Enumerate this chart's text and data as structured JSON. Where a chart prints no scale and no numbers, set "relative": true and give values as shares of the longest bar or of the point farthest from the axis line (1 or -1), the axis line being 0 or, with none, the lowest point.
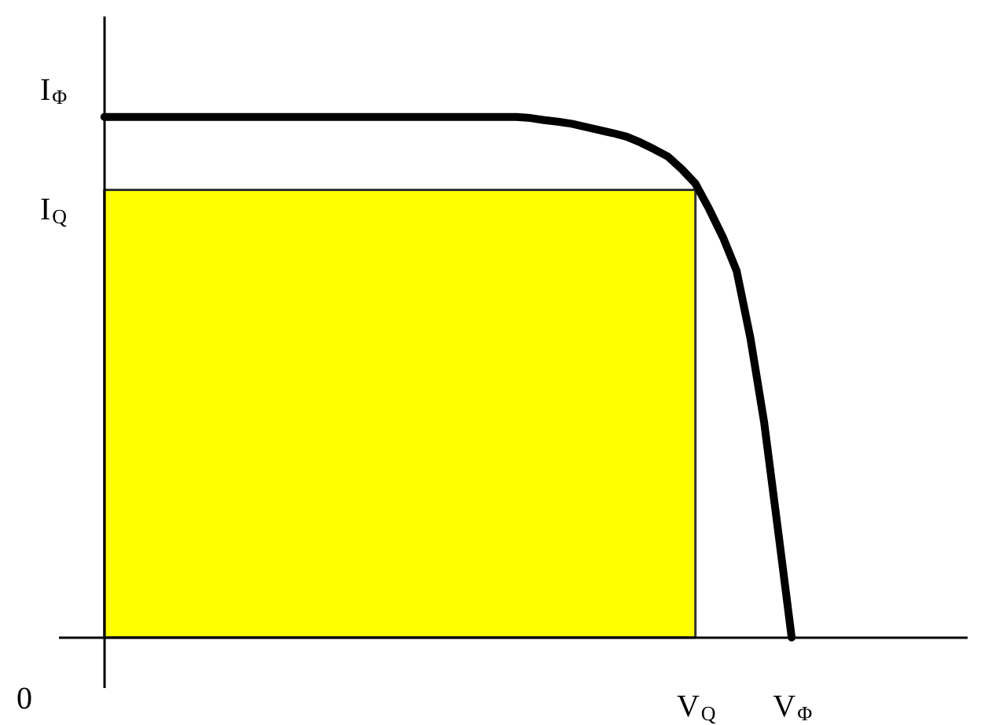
{
  "chart_data": {
    "type": "line",
    "relative": true,
    "grid": false,
    "categories": [
      null,
      null,
      null,
      null,
      null,
      null,
      null,
      null,
      null,
      null,
      null,
      null,
      null,
      null,
      null,
      null,
      null,
      null,
      null,
      null,
      null,
      null,
      null,
      null,
      null,
      null,
      null,
      null,
      null,
      null,
      null,
      null,
      null,
      null,
      null,
      null,
      null,
      null,
      null,
      null,
      null,
      null,
      null,
      "V$_{Q}$",
      null,
      null,
      null,
      null,
      null,
      null,
      "V$_{Φ}$"
    ],
    "series": [
      {
        "type": "area",
        "color": "#ffff00",
        "values": [
          0.86,
          0.86,
          0.86,
          0.86,
          0.86,
          0.86,
          0.86,
          0.86,
          0.86,
          0.86,
          0.86,
          0.86,
          0.86,
          0.86,
          0.86,
          0.86,
          0.86,
          0.86,
          0.86,
          0.86,
          0.86,
          0.86,
          0.86,
          0.86,
          0.86,
          0.86,
          0.86,
          0.86,
          0.86,
          0.86,
          0.86,
          0.86,
          0.86,
          0.86,
          0.86,
          0.86,
          0.86,
          0.86,
          0.86,
          0.86,
          0.86,
          0.86,
          0.86,
          0.86,
          null,
          null,
          null,
          null,
          null,
          null,
          null
        ]
      },
      {
        "color": "#000000",
        "values": [
          1,
          1,
          1,
          1,
          1,
          1,
          1,
          1,
          1,
          1,
          1,
          1,
          1,
          1,
          1,
          1,
          1,
          1,
          1,
          1,
          1,
          1,
          1,
          1,
          1,
          1,
          1,
          1,
          1,
          1,
          1,
          0.998,
          0.994,
          0.991,
          0.987,
          0.981,
          0.975,
          0.969,
          0.962,
          0.951,
          0.938,
          0.924,
          0.9,
          0.872,
          0.823,
          0.769,
          0.704,
          0.575,
          0.413,
          0.208,
          0
        ]
      }
    ],
    "annotations": [
      "I$_{Φ}$",
      "I$_{Q}$",
      "0"
    ]
  }
}
